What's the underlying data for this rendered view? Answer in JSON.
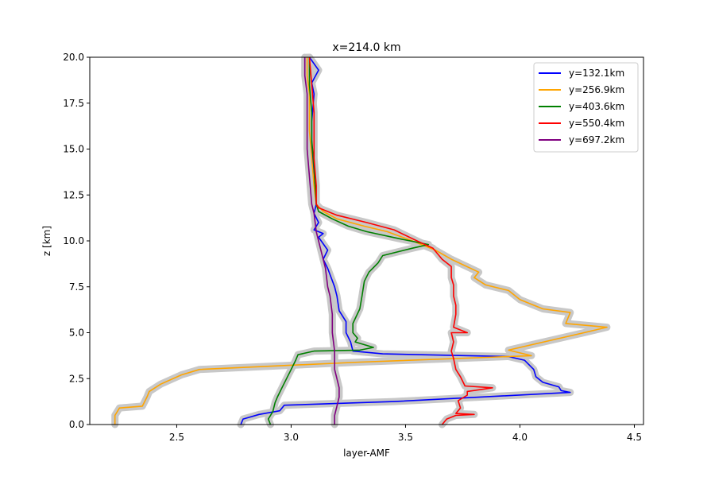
{
  "chart_data": {
    "type": "line",
    "title": "x=214.0 km",
    "xlabel": "layer-AMF",
    "ylabel": "z [km]",
    "xlim": [
      2.12,
      4.54
    ],
    "ylim": [
      0,
      20
    ],
    "xticks": [
      "2.5",
      "3.0",
      "3.5",
      "4.0",
      "4.5"
    ],
    "yticks": [
      "0.0",
      "2.5",
      "5.0",
      "7.5",
      "10.0",
      "12.5",
      "15.0",
      "17.5",
      "20.0"
    ],
    "grid": false,
    "legend_position": "upper right",
    "uncertainty_band_color": "#c8c8c8",
    "series": [
      {
        "name": "y=132.1km",
        "color": "#0000ff",
        "points": [
          [
            2.78,
            0.0
          ],
          [
            2.79,
            0.3
          ],
          [
            2.86,
            0.55
          ],
          [
            2.95,
            0.75
          ],
          [
            2.97,
            1.05
          ],
          [
            3.45,
            1.25
          ],
          [
            4.22,
            1.75
          ],
          [
            4.18,
            1.85
          ],
          [
            4.17,
            2.05
          ],
          [
            4.1,
            2.3
          ],
          [
            4.07,
            2.6
          ],
          [
            4.06,
            3.0
          ],
          [
            4.02,
            3.5
          ],
          [
            3.95,
            3.7
          ],
          [
            3.4,
            3.85
          ],
          [
            3.27,
            4.0
          ],
          [
            3.26,
            4.5
          ],
          [
            3.24,
            5.0
          ],
          [
            3.24,
            5.6
          ],
          [
            3.21,
            6.2
          ],
          [
            3.2,
            7.0
          ],
          [
            3.19,
            7.5
          ],
          [
            3.16,
            8.5
          ],
          [
            3.14,
            9.0
          ],
          [
            3.16,
            9.5
          ],
          [
            3.12,
            10.2
          ],
          [
            3.14,
            10.4
          ],
          [
            3.1,
            10.6
          ],
          [
            3.12,
            11.0
          ],
          [
            3.1,
            11.5
          ],
          [
            3.11,
            12.0
          ],
          [
            3.1,
            13.5
          ],
          [
            3.09,
            15.0
          ],
          [
            3.09,
            16.5
          ],
          [
            3.1,
            18.0
          ],
          [
            3.09,
            18.6
          ],
          [
            3.12,
            19.3
          ],
          [
            3.08,
            20.0
          ]
        ]
      },
      {
        "name": "y=256.9km",
        "color": "#ffa500",
        "points": [
          [
            2.23,
            0.0
          ],
          [
            2.23,
            0.5
          ],
          [
            2.25,
            0.9
          ],
          [
            2.35,
            1.0
          ],
          [
            2.37,
            1.5
          ],
          [
            2.38,
            1.8
          ],
          [
            2.43,
            2.2
          ],
          [
            2.52,
            2.7
          ],
          [
            2.6,
            3.0
          ],
          [
            3.3,
            3.4
          ],
          [
            4.05,
            3.75
          ],
          [
            3.95,
            4.05
          ],
          [
            4.07,
            4.4
          ],
          [
            4.28,
            5.0
          ],
          [
            4.38,
            5.3
          ],
          [
            4.2,
            5.5
          ],
          [
            4.22,
            6.1
          ],
          [
            4.1,
            6.3
          ],
          [
            4.0,
            6.8
          ],
          [
            3.95,
            7.3
          ],
          [
            3.85,
            7.6
          ],
          [
            3.8,
            8.0
          ],
          [
            3.82,
            8.3
          ],
          [
            3.7,
            9.0
          ],
          [
            3.63,
            9.5
          ],
          [
            3.53,
            10.0
          ],
          [
            3.42,
            10.5
          ],
          [
            3.32,
            10.8
          ],
          [
            3.2,
            11.2
          ],
          [
            3.14,
            11.6
          ],
          [
            3.11,
            12.0
          ],
          [
            3.1,
            13.0
          ],
          [
            3.09,
            14.5
          ],
          [
            3.08,
            16.0
          ],
          [
            3.08,
            18.0
          ],
          [
            3.07,
            19.0
          ],
          [
            3.07,
            20.0
          ]
        ]
      },
      {
        "name": "y=403.6km",
        "color": "#008000",
        "points": [
          [
            2.91,
            0.0
          ],
          [
            2.9,
            0.3
          ],
          [
            2.92,
            0.7
          ],
          [
            2.93,
            1.2
          ],
          [
            2.94,
            1.5
          ],
          [
            2.96,
            2.0
          ],
          [
            3.0,
            3.0
          ],
          [
            3.02,
            3.5
          ],
          [
            3.03,
            3.8
          ],
          [
            3.1,
            4.0
          ],
          [
            3.3,
            4.05
          ],
          [
            3.36,
            4.2
          ],
          [
            3.28,
            4.5
          ],
          [
            3.29,
            4.7
          ],
          [
            3.27,
            5.0
          ],
          [
            3.27,
            5.5
          ],
          [
            3.3,
            6.3
          ],
          [
            3.31,
            7.0
          ],
          [
            3.32,
            7.8
          ],
          [
            3.34,
            8.3
          ],
          [
            3.38,
            8.8
          ],
          [
            3.4,
            9.2
          ],
          [
            3.53,
            9.6
          ],
          [
            3.6,
            9.8
          ],
          [
            3.48,
            10.1
          ],
          [
            3.33,
            10.5
          ],
          [
            3.25,
            10.8
          ],
          [
            3.18,
            11.2
          ],
          [
            3.12,
            11.6
          ],
          [
            3.11,
            12.0
          ],
          [
            3.1,
            14.0
          ],
          [
            3.09,
            15.5
          ],
          [
            3.09,
            17.0
          ],
          [
            3.08,
            18.5
          ],
          [
            3.08,
            20.0
          ]
        ]
      },
      {
        "name": "y=550.4km",
        "color": "#ff0000",
        "points": [
          [
            3.66,
            0.0
          ],
          [
            3.68,
            0.3
          ],
          [
            3.72,
            0.5
          ],
          [
            3.8,
            0.55
          ],
          [
            3.72,
            0.6
          ],
          [
            3.74,
            0.9
          ],
          [
            3.73,
            1.3
          ],
          [
            3.77,
            1.6
          ],
          [
            3.77,
            1.8
          ],
          [
            3.88,
            2.0
          ],
          [
            3.76,
            2.1
          ],
          [
            3.74,
            2.6
          ],
          [
            3.72,
            3.0
          ],
          [
            3.71,
            3.6
          ],
          [
            3.7,
            4.0
          ],
          [
            3.71,
            4.5
          ],
          [
            3.7,
            5.0
          ],
          [
            3.77,
            5.0
          ],
          [
            3.71,
            5.3
          ],
          [
            3.72,
            6.0
          ],
          [
            3.72,
            6.5
          ],
          [
            3.71,
            7.0
          ],
          [
            3.71,
            7.6
          ],
          [
            3.7,
            8.0
          ],
          [
            3.7,
            8.6
          ],
          [
            3.66,
            9.0
          ],
          [
            3.62,
            9.6
          ],
          [
            3.55,
            10.0
          ],
          [
            3.45,
            10.6
          ],
          [
            3.33,
            11.0
          ],
          [
            3.2,
            11.4
          ],
          [
            3.12,
            11.8
          ],
          [
            3.11,
            12.0
          ],
          [
            3.11,
            13.0
          ],
          [
            3.1,
            14.5
          ],
          [
            3.1,
            16.0
          ],
          [
            3.1,
            17.0
          ],
          [
            3.09,
            18.5
          ],
          [
            3.08,
            20.0
          ]
        ]
      },
      {
        "name": "y=697.2km",
        "color": "#800080",
        "points": [
          [
            3.19,
            0.0
          ],
          [
            3.19,
            0.5
          ],
          [
            3.2,
            1.0
          ],
          [
            3.21,
            1.5
          ],
          [
            3.21,
            2.0
          ],
          [
            3.2,
            2.5
          ],
          [
            3.19,
            3.0
          ],
          [
            3.19,
            4.0
          ],
          [
            3.18,
            5.0
          ],
          [
            3.18,
            6.0
          ],
          [
            3.17,
            7.0
          ],
          [
            3.16,
            7.5
          ],
          [
            3.15,
            8.5
          ],
          [
            3.14,
            9.0
          ],
          [
            3.13,
            9.5
          ],
          [
            3.11,
            10.5
          ],
          [
            3.1,
            11.5
          ],
          [
            3.09,
            12.0
          ],
          [
            3.08,
            13.5
          ],
          [
            3.07,
            15.0
          ],
          [
            3.07,
            16.5
          ],
          [
            3.07,
            18.0
          ],
          [
            3.06,
            19.0
          ],
          [
            3.06,
            20.0
          ]
        ]
      }
    ]
  }
}
